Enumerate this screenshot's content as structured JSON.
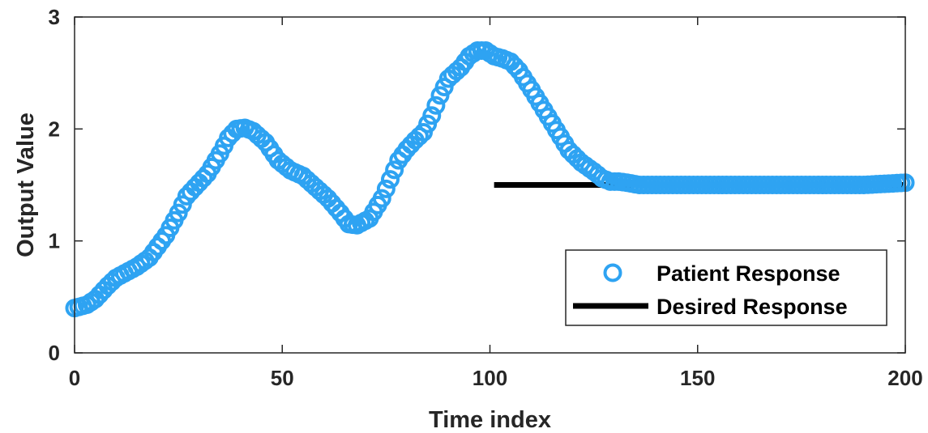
{
  "chart_data": {
    "type": "line",
    "xlabel": "Time index",
    "ylabel": "Output Value",
    "xlim": [
      0,
      200
    ],
    "ylim": [
      0,
      3
    ],
    "xticks": [
      "0",
      "50",
      "100",
      "150",
      "200"
    ],
    "yticks": [
      "0",
      "1",
      "2",
      "3"
    ],
    "grid": false,
    "legend_position": "bottom-right",
    "series": [
      {
        "name": "Patient Response",
        "style": "markers",
        "marker": "circle-open",
        "color": "#2ea3f2",
        "points": [
          [
            0,
            0.4
          ],
          [
            3,
            0.43
          ],
          [
            5,
            0.48
          ],
          [
            8,
            0.6
          ],
          [
            10,
            0.67
          ],
          [
            13,
            0.73
          ],
          [
            15,
            0.77
          ],
          [
            18,
            0.85
          ],
          [
            20,
            0.95
          ],
          [
            22,
            1.05
          ],
          [
            25,
            1.25
          ],
          [
            27,
            1.4
          ],
          [
            30,
            1.52
          ],
          [
            32,
            1.6
          ],
          [
            35,
            1.78
          ],
          [
            37,
            1.92
          ],
          [
            39,
            2.0
          ],
          [
            41,
            2.01
          ],
          [
            43,
            1.98
          ],
          [
            46,
            1.88
          ],
          [
            49,
            1.72
          ],
          [
            52,
            1.63
          ],
          [
            55,
            1.58
          ],
          [
            58,
            1.48
          ],
          [
            61,
            1.38
          ],
          [
            64,
            1.25
          ],
          [
            66,
            1.15
          ],
          [
            68,
            1.14
          ],
          [
            71,
            1.2
          ],
          [
            74,
            1.38
          ],
          [
            76,
            1.55
          ],
          [
            78,
            1.72
          ],
          [
            80,
            1.82
          ],
          [
            82,
            1.9
          ],
          [
            84,
            1.97
          ],
          [
            86,
            2.12
          ],
          [
            88,
            2.3
          ],
          [
            90,
            2.45
          ],
          [
            93,
            2.55
          ],
          [
            95,
            2.65
          ],
          [
            97,
            2.7
          ],
          [
            99,
            2.7
          ],
          [
            101,
            2.65
          ],
          [
            103,
            2.63
          ],
          [
            105,
            2.6
          ],
          [
            107,
            2.52
          ],
          [
            110,
            2.35
          ],
          [
            113,
            2.17
          ],
          [
            116,
            1.99
          ],
          [
            119,
            1.81
          ],
          [
            122,
            1.7
          ],
          [
            125,
            1.62
          ],
          [
            127,
            1.56
          ],
          [
            129,
            1.53
          ],
          [
            131,
            1.53
          ],
          [
            133,
            1.52
          ],
          [
            136,
            1.5
          ],
          [
            140,
            1.5
          ],
          [
            145,
            1.5
          ],
          [
            150,
            1.5
          ],
          [
            155,
            1.5
          ],
          [
            160,
            1.5
          ],
          [
            165,
            1.5
          ],
          [
            170,
            1.5
          ],
          [
            175,
            1.5
          ],
          [
            180,
            1.5
          ],
          [
            185,
            1.5
          ],
          [
            190,
            1.5
          ],
          [
            195,
            1.51
          ],
          [
            200,
            1.52
          ]
        ]
      },
      {
        "name": "Desired Response",
        "style": "line",
        "color": "#000000",
        "points": [
          [
            101,
            1.5
          ],
          [
            200,
            1.5
          ]
        ]
      }
    ]
  }
}
